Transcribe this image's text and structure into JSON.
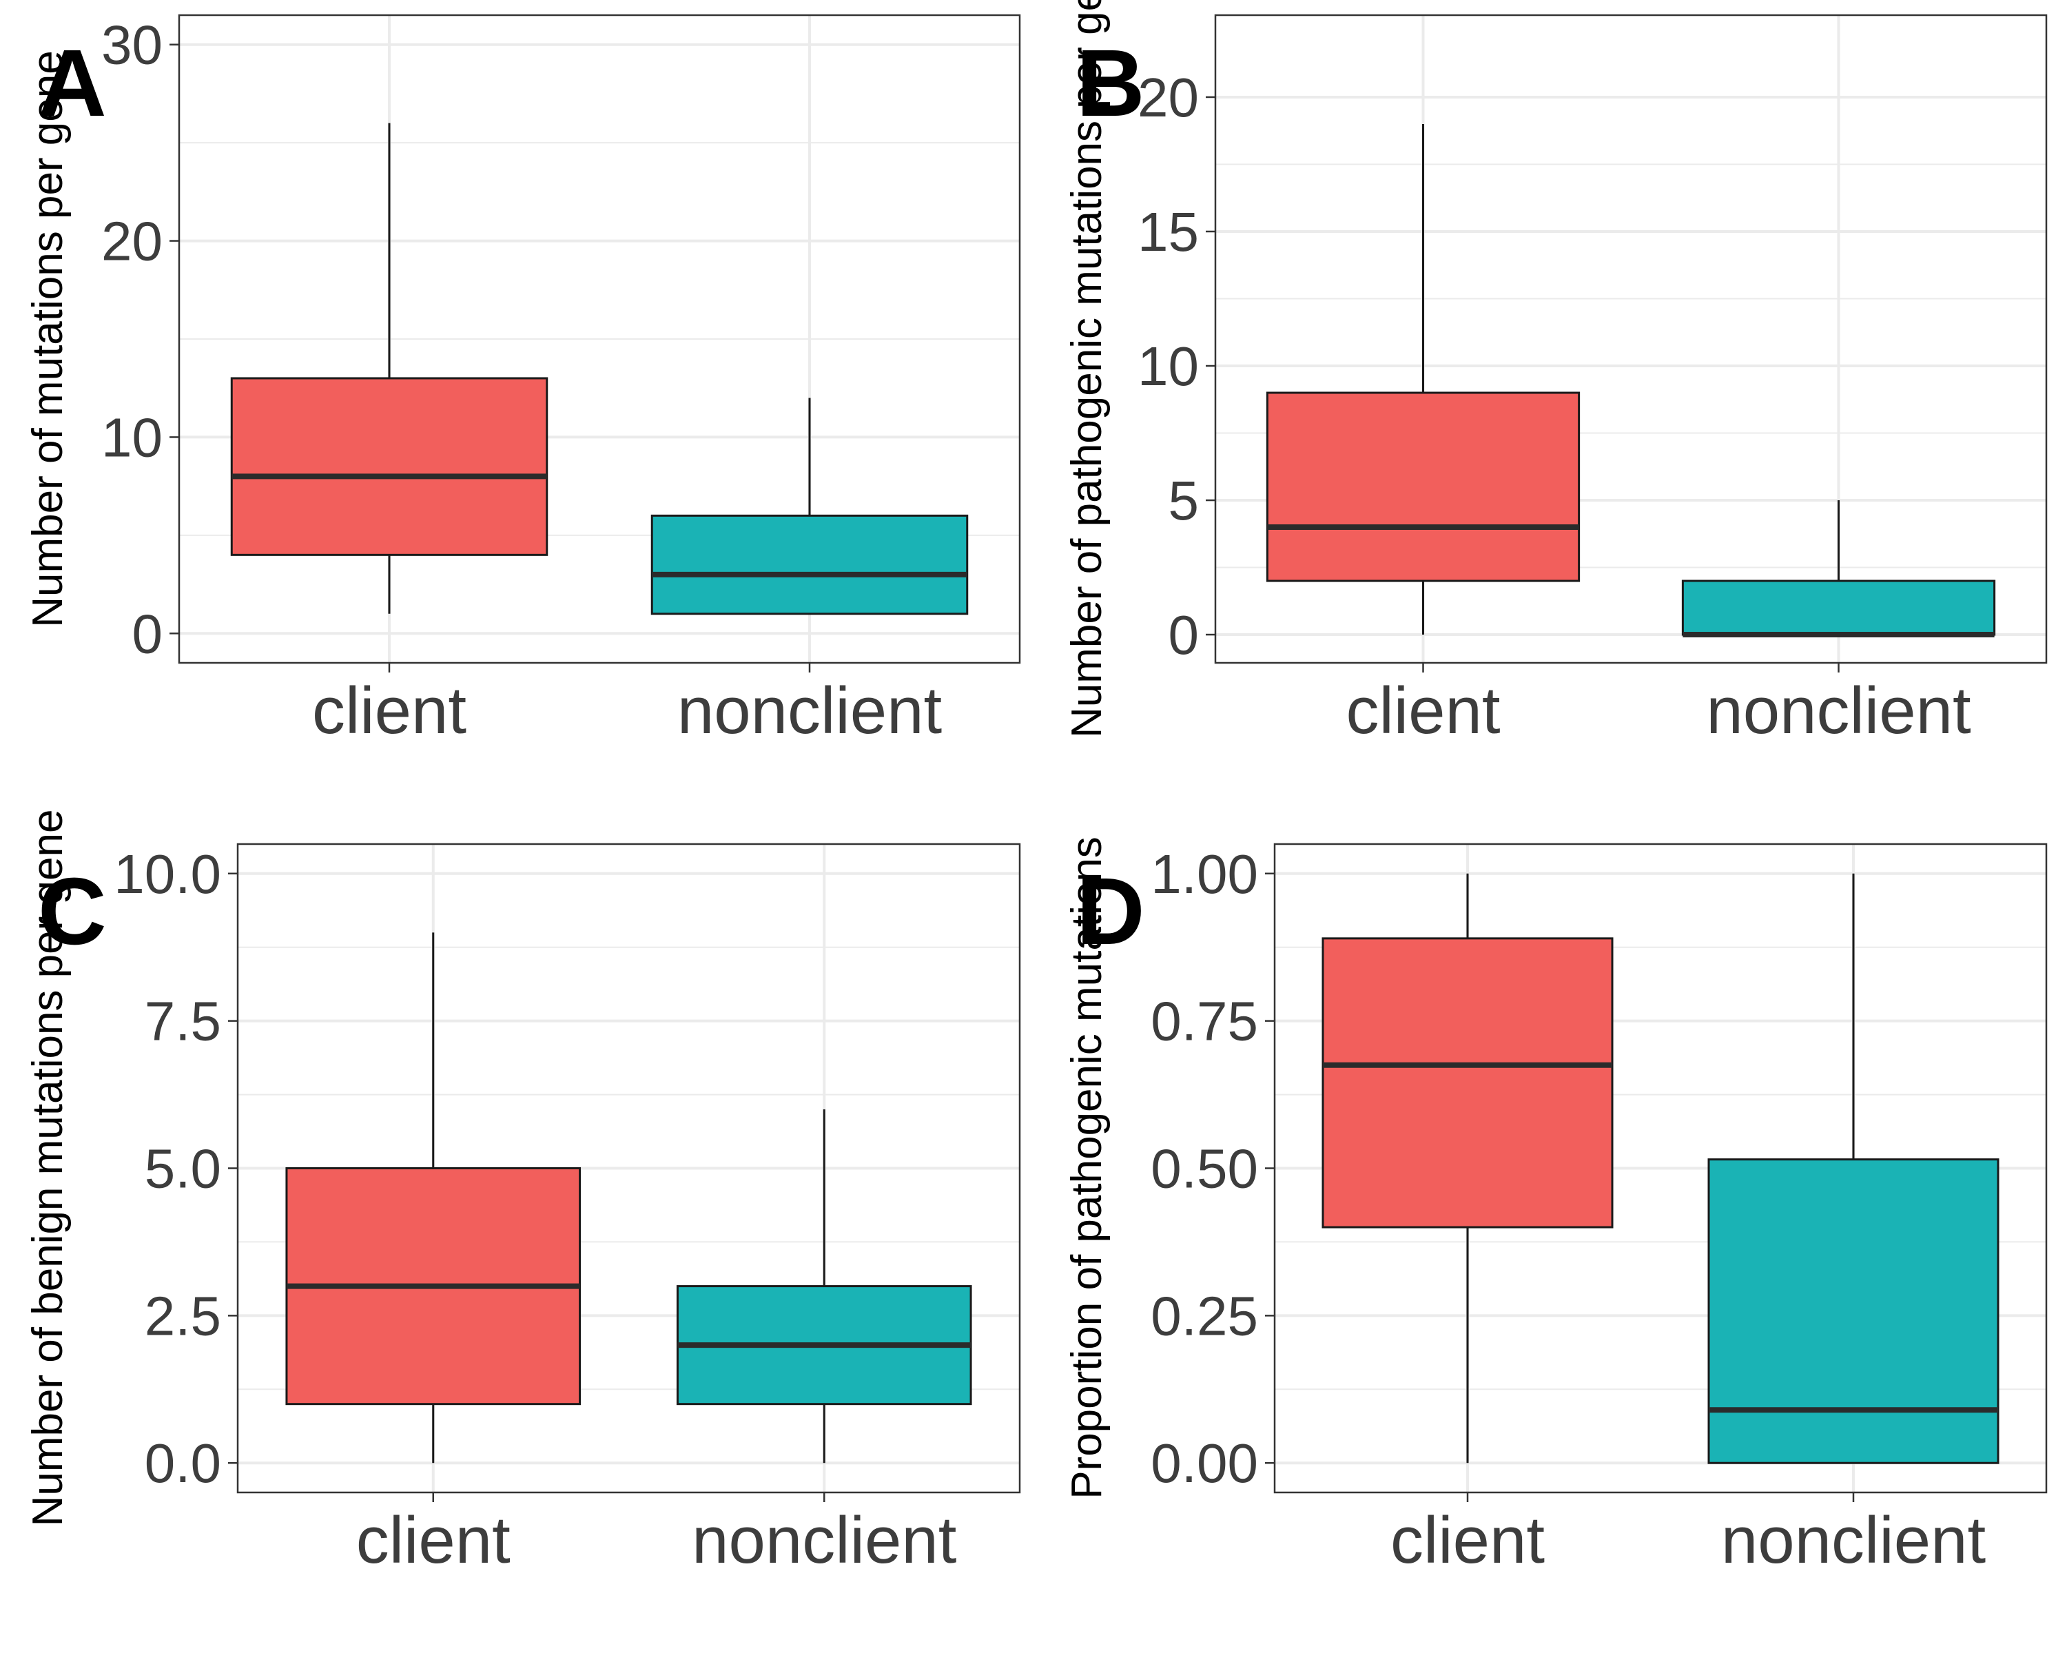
{
  "colors": {
    "client": "#F25F5C",
    "nonclient": "#1AB3B5",
    "grid": "#EBEBEB",
    "border": "#333333"
  },
  "chart_data": [
    {
      "type": "boxplot",
      "panel_label": "A",
      "ylabel": "Number of mutations per gene",
      "categories": [
        "client",
        "nonclient"
      ],
      "ylim": [
        -1.5,
        31.5
      ],
      "yticks": [
        0,
        10,
        20,
        30
      ],
      "ytick_labels": [
        "0",
        "10",
        "20",
        "30"
      ],
      "grid": true,
      "boxes": [
        {
          "name": "client",
          "min": 1,
          "q1": 4,
          "median": 8,
          "q3": 13,
          "max": 26
        },
        {
          "name": "nonclient",
          "min": 1,
          "q1": 1,
          "median": 3,
          "q3": 6,
          "max": 12
        }
      ]
    },
    {
      "type": "boxplot",
      "panel_label": "B",
      "ylabel": "Number of pathogenic mutations per gene",
      "categories": [
        "client",
        "nonclient"
      ],
      "ylim": [
        -1.05,
        23.05
      ],
      "yticks": [
        0,
        5,
        10,
        15,
        20
      ],
      "ytick_labels": [
        "0",
        "5",
        "10",
        "15",
        "20"
      ],
      "grid": true,
      "boxes": [
        {
          "name": "client",
          "min": 0,
          "q1": 2,
          "median": 4,
          "q3": 9,
          "max": 19
        },
        {
          "name": "nonclient",
          "min": 0,
          "q1": 0,
          "median": 0,
          "q3": 2,
          "max": 5
        }
      ]
    },
    {
      "type": "boxplot",
      "panel_label": "C",
      "ylabel": "Number of benign mutations per gene",
      "categories": [
        "client",
        "nonclient"
      ],
      "ylim": [
        -0.5,
        10.5
      ],
      "yticks": [
        0,
        2.5,
        5,
        7.5,
        10
      ],
      "ytick_labels": [
        "0.0",
        "2.5",
        "5.0",
        "7.5",
        "10.0"
      ],
      "grid": true,
      "boxes": [
        {
          "name": "client",
          "min": 0,
          "q1": 1,
          "median": 3,
          "q3": 5,
          "max": 9
        },
        {
          "name": "nonclient",
          "min": 0,
          "q1": 1,
          "median": 2,
          "q3": 3,
          "max": 6
        }
      ]
    },
    {
      "type": "boxplot",
      "panel_label": "D",
      "ylabel": "Proportion of pathogenic mutations",
      "categories": [
        "client",
        "nonclient"
      ],
      "ylim": [
        -0.05,
        1.05
      ],
      "yticks": [
        0,
        0.25,
        0.5,
        0.75,
        1
      ],
      "ytick_labels": [
        "0.00",
        "0.25",
        "0.50",
        "0.75",
        "1.00"
      ],
      "grid": true,
      "boxes": [
        {
          "name": "client",
          "min": 0,
          "q1": 0.4,
          "median": 0.675,
          "q3": 0.89,
          "max": 1
        },
        {
          "name": "nonclient",
          "min": 0,
          "q1": 0,
          "median": 0.09,
          "q3": 0.515,
          "max": 1
        }
      ]
    }
  ]
}
